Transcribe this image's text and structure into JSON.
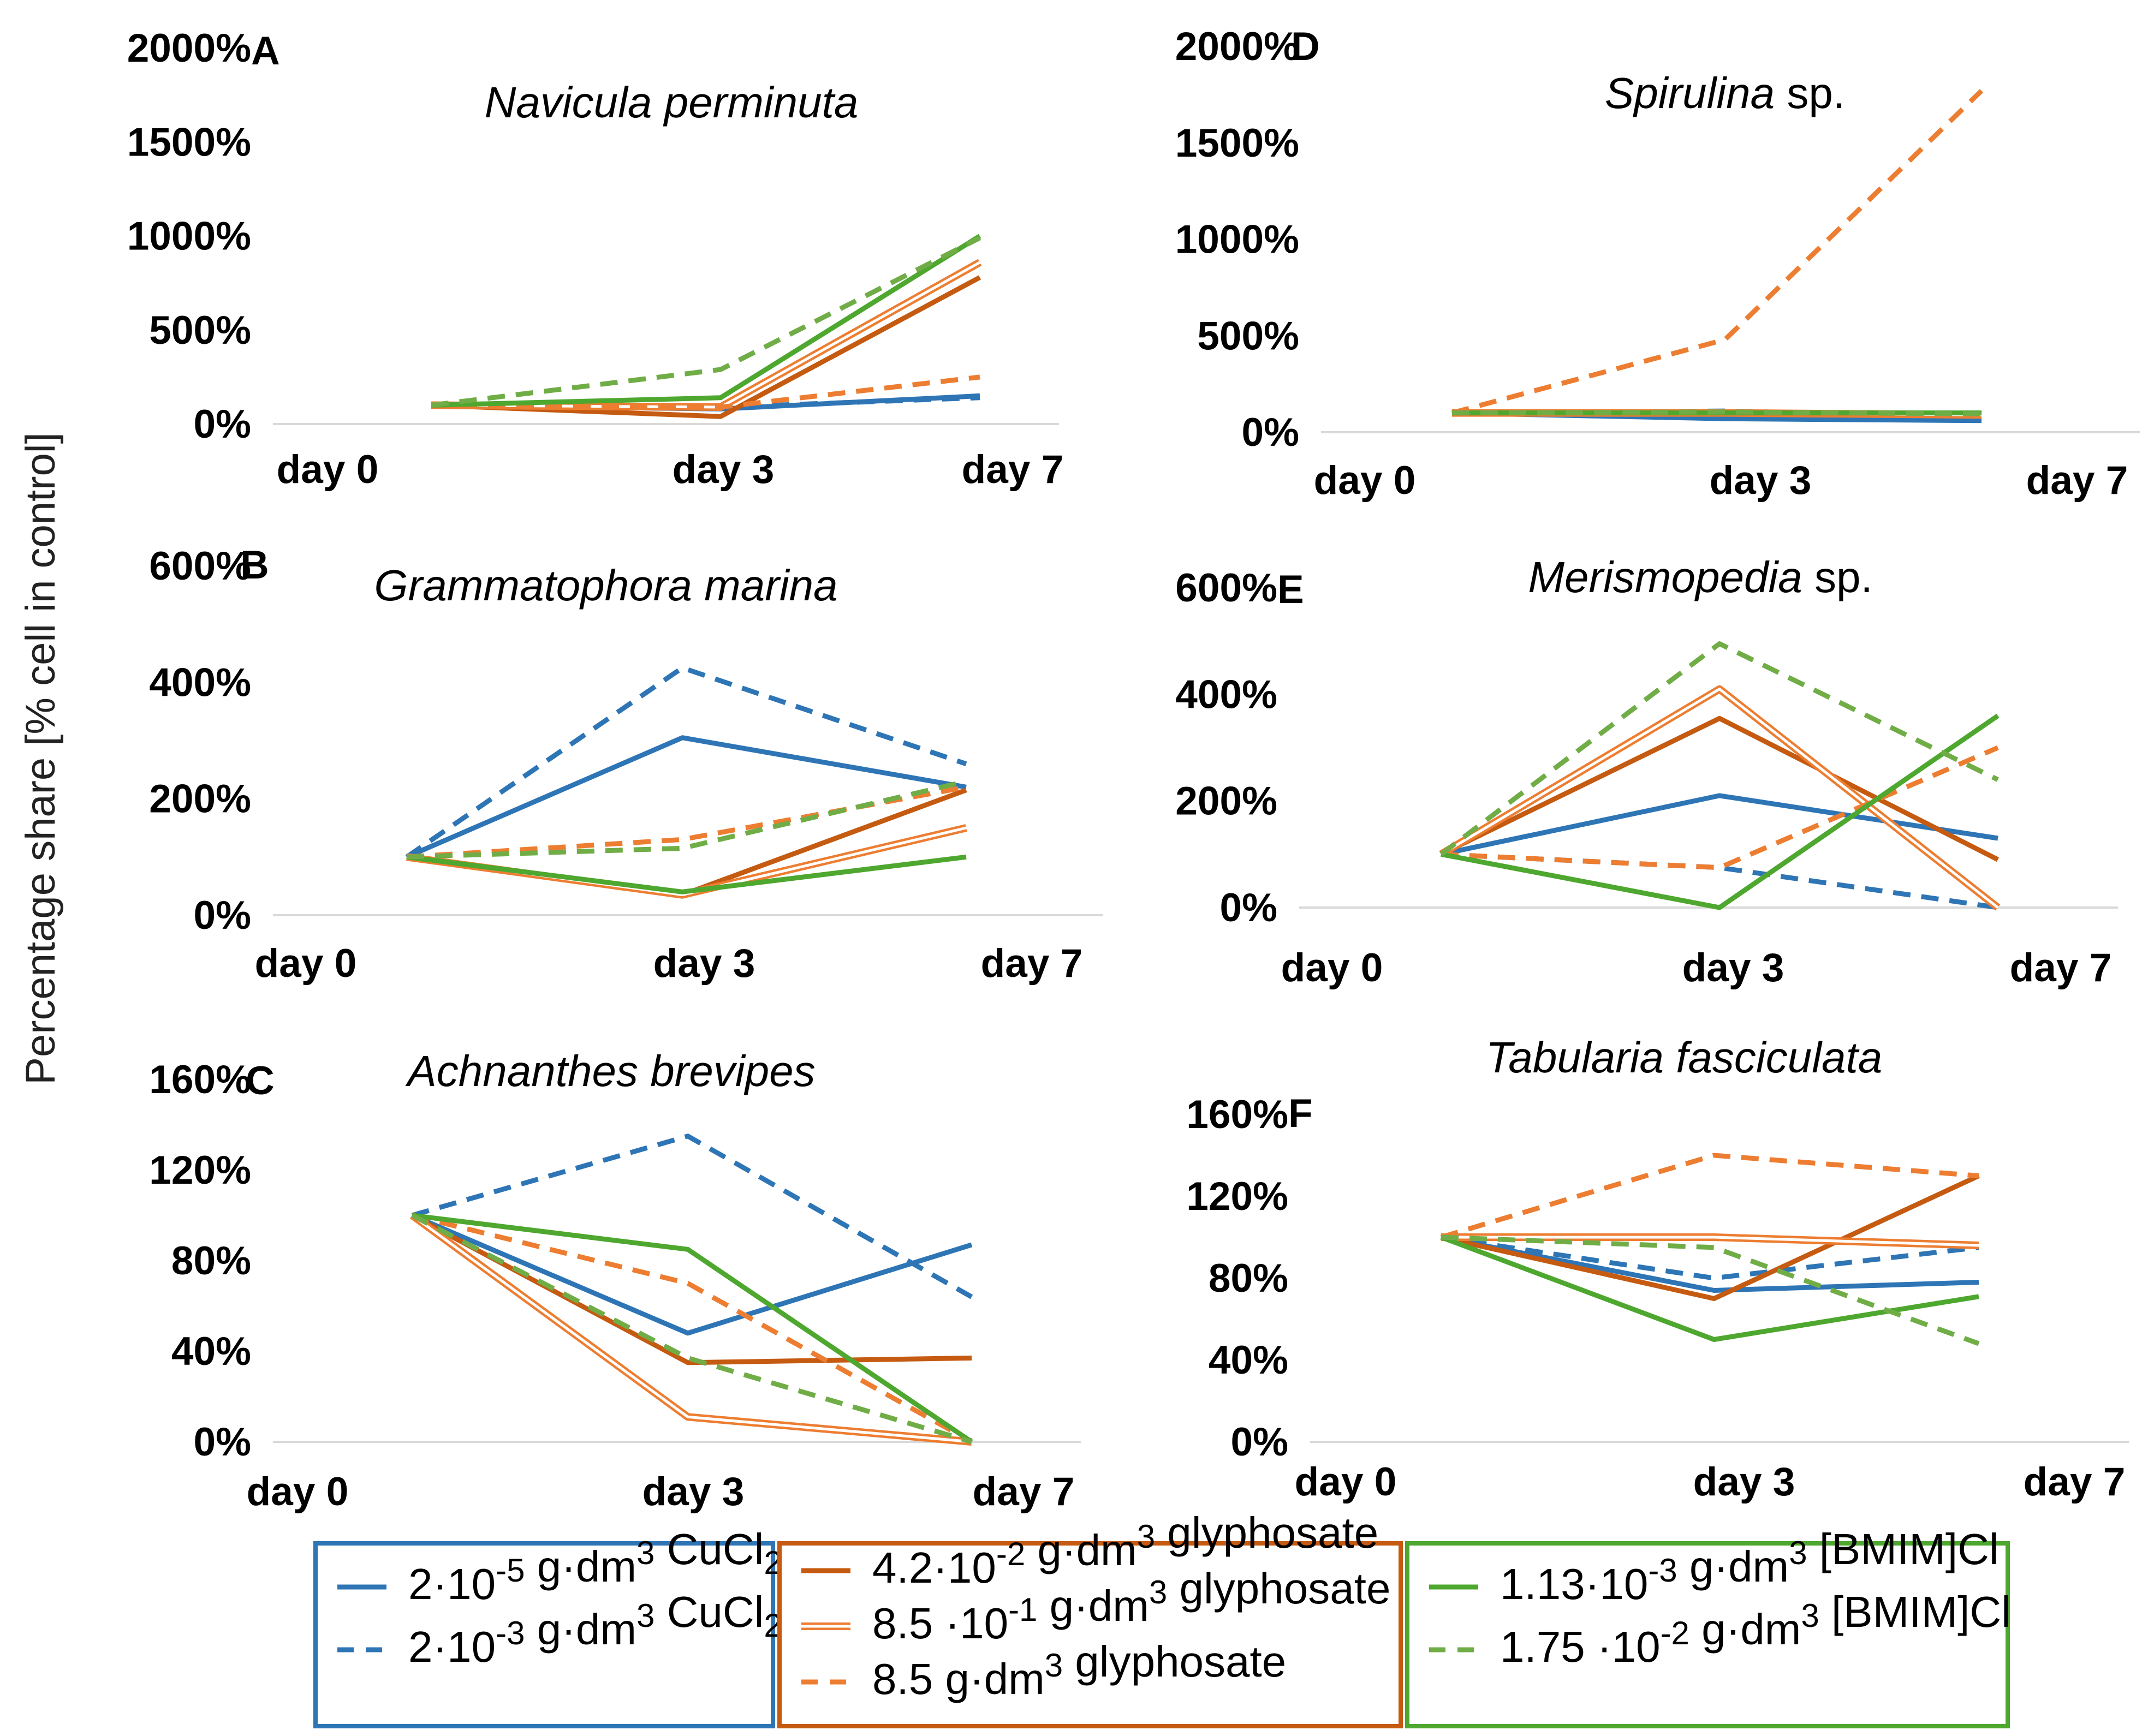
{
  "figure": {
    "y_axis_label": "Percentage share [% cell in control]",
    "x_categories": [
      "day 0",
      "day 3",
      "day 7"
    ]
  },
  "chart_data": [
    {
      "id": "A",
      "panel_label": "A",
      "type": "line",
      "title": "Navicula perminuta",
      "title_italic": "Navicula perminuta",
      "title_suffix": "",
      "x": [
        "day 0",
        "day 3",
        "day 7"
      ],
      "yticks": [
        "0%",
        "500%",
        "1000%",
        "1500%",
        "2000%"
      ],
      "ylim": [
        0,
        2000
      ],
      "series": [
        {
          "key": "cu_low",
          "values": [
            100,
            80,
            150
          ]
        },
        {
          "key": "cu_high",
          "values": [
            100,
            90,
            140
          ]
        },
        {
          "key": "gly_low",
          "values": [
            100,
            40,
            780
          ]
        },
        {
          "key": "gly_mid",
          "values": [
            100,
            90,
            860
          ]
        },
        {
          "key": "gly_high",
          "values": [
            100,
            90,
            250
          ]
        },
        {
          "key": "il_low",
          "values": [
            100,
            140,
            1000
          ]
        },
        {
          "key": "il_high",
          "values": [
            100,
            290,
            990
          ]
        }
      ]
    },
    {
      "id": "B",
      "panel_label": "B",
      "type": "line",
      "title": "Grammatophora marina",
      "title_italic": "Grammatophora marina",
      "title_suffix": "",
      "x": [
        "day 0",
        "day 3",
        "day 7"
      ],
      "yticks": [
        "0%",
        "200%",
        "400%",
        "600%"
      ],
      "ylim": [
        0,
        600
      ],
      "series": [
        {
          "key": "cu_low",
          "values": [
            100,
            305,
            220
          ]
        },
        {
          "key": "cu_high",
          "values": [
            100,
            425,
            260
          ]
        },
        {
          "key": "gly_low",
          "values": [
            100,
            35,
            215
          ]
        },
        {
          "key": "gly_mid",
          "values": [
            100,
            35,
            150
          ]
        },
        {
          "key": "gly_high",
          "values": [
            100,
            130,
            220
          ]
        },
        {
          "key": "il_low",
          "values": [
            100,
            40,
            100
          ]
        },
        {
          "key": "il_high",
          "values": [
            100,
            115,
            230
          ]
        }
      ]
    },
    {
      "id": "C",
      "panel_label": "C",
      "type": "line",
      "title": "Achnanthes brevipes",
      "title_italic": "Achnanthes brevipes",
      "title_suffix": "",
      "x": [
        "day 0",
        "day 3",
        "day 7"
      ],
      "yticks": [
        "0%",
        "40%",
        "80%",
        "120%",
        "160%"
      ],
      "ylim": [
        0,
        160
      ],
      "series": [
        {
          "key": "cu_low",
          "values": [
            100,
            48,
            87
          ]
        },
        {
          "key": "cu_high",
          "values": [
            100,
            135,
            64
          ]
        },
        {
          "key": "gly_low",
          "values": [
            100,
            35,
            37
          ]
        },
        {
          "key": "gly_mid",
          "values": [
            100,
            11,
            0
          ]
        },
        {
          "key": "gly_high",
          "values": [
            100,
            70,
            0
          ]
        },
        {
          "key": "il_low",
          "values": [
            100,
            85,
            0
          ]
        },
        {
          "key": "il_high",
          "values": [
            100,
            37,
            0
          ]
        }
      ]
    },
    {
      "id": "D",
      "panel_label": "D",
      "type": "line",
      "title": "Spirulina sp.",
      "title_italic": "Spirulina",
      "title_suffix": " sp.",
      "x": [
        "day 0",
        "day 3",
        "day 7"
      ],
      "yticks": [
        "0%",
        "500%",
        "1000%",
        "1500%",
        "2000%"
      ],
      "ylim": [
        0,
        2000
      ],
      "series": [
        {
          "key": "cu_low",
          "values": [
            100,
            70,
            60
          ]
        },
        {
          "key": "cu_high",
          "values": [
            100,
            110,
            80
          ]
        },
        {
          "key": "gly_low",
          "values": [
            100,
            100,
            90
          ]
        },
        {
          "key": "gly_mid",
          "values": [
            100,
            100,
            90
          ]
        },
        {
          "key": "gly_high",
          "values": [
            100,
            480,
            1770
          ]
        },
        {
          "key": "il_low",
          "values": [
            100,
            100,
            100
          ]
        },
        {
          "key": "il_high",
          "values": [
            100,
            105,
            95
          ]
        }
      ]
    },
    {
      "id": "E",
      "panel_label": "E",
      "type": "line",
      "title": "Merismopedia sp.",
      "title_italic": "Merismopedia",
      "title_suffix": " sp.",
      "x": [
        "day 0",
        "day 3",
        "day 7"
      ],
      "yticks": [
        "0%",
        "200%",
        "400%",
        "600%"
      ],
      "ylim": [
        0,
        600
      ],
      "series": [
        {
          "key": "cu_low",
          "values": [
            100,
            210,
            130
          ]
        },
        {
          "key": "cu_high",
          "values": [
            100,
            75,
            0
          ]
        },
        {
          "key": "gly_low",
          "values": [
            100,
            355,
            90
          ]
        },
        {
          "key": "gly_mid",
          "values": [
            100,
            410,
            0
          ]
        },
        {
          "key": "gly_high",
          "values": [
            100,
            75,
            300
          ]
        },
        {
          "key": "il_low",
          "values": [
            100,
            0,
            360
          ]
        },
        {
          "key": "il_high",
          "values": [
            100,
            495,
            240
          ]
        }
      ]
    },
    {
      "id": "F",
      "panel_label": "F",
      "type": "line",
      "title": "Tabularia fasciculata",
      "title_italic": "Tabularia fasciculata",
      "title_suffix": "",
      "x": [
        "day 0",
        "day 3",
        "day 7"
      ],
      "yticks": [
        "0%",
        "40%",
        "80%",
        "120%",
        "160%"
      ],
      "ylim": [
        0,
        160
      ],
      "series": [
        {
          "key": "cu_low",
          "values": [
            100,
            74,
            78
          ]
        },
        {
          "key": "cu_high",
          "values": [
            100,
            80,
            95
          ]
        },
        {
          "key": "gly_low",
          "values": [
            100,
            70,
            130
          ]
        },
        {
          "key": "gly_mid",
          "values": [
            100,
            100,
            96
          ]
        },
        {
          "key": "gly_high",
          "values": [
            100,
            140,
            130
          ]
        },
        {
          "key": "il_low",
          "values": [
            100,
            50,
            71
          ]
        },
        {
          "key": "il_high",
          "values": [
            100,
            95,
            48
          ]
        }
      ]
    }
  ],
  "series_styles": {
    "cu_low": {
      "color": "#2E75B6",
      "dash": "solid"
    },
    "cu_high": {
      "color": "#2E75B6",
      "dash": "dashed"
    },
    "gly_low": {
      "color": "#C55A11",
      "dash": "solid"
    },
    "gly_mid": {
      "color": "#ED7D31",
      "dash": "double"
    },
    "gly_high": {
      "color": "#ED7D31",
      "dash": "dashed"
    },
    "il_low": {
      "color": "#4EA72E",
      "dash": "solid"
    },
    "il_high": {
      "color": "#70AD47",
      "dash": "dashed"
    }
  },
  "legend": {
    "groups": [
      {
        "border_color": "#2E75B6",
        "items": [
          {
            "key": "cu_low",
            "mantissa": "2·10",
            "exponent": "-5",
            "unit": " g·dm",
            "unit_exp": "3",
            "compound": " CuCl",
            "compound_sub": "2"
          },
          {
            "key": "cu_high",
            "mantissa": "2·10",
            "exponent": "-3",
            "unit": " g·dm",
            "unit_exp": "3",
            "compound": " CuCl",
            "compound_sub": "2"
          }
        ]
      },
      {
        "border_color": "#C55A11",
        "items": [
          {
            "key": "gly_low",
            "mantissa": "4.2·10",
            "exponent": "-2",
            "unit": " g·dm",
            "unit_exp": "3",
            "compound": " glyphosate",
            "compound_sub": ""
          },
          {
            "key": "gly_mid",
            "mantissa": "8.5 ·10",
            "exponent": "-1",
            "unit": " g·dm",
            "unit_exp": "3",
            "compound": " glyphosate",
            "compound_sub": ""
          },
          {
            "key": "gly_high",
            "mantissa": "8.5 g·dm",
            "exponent": "3",
            "unit": "",
            "unit_exp": "",
            "compound": " glyphosate",
            "compound_sub": ""
          }
        ]
      },
      {
        "border_color": "#4EA72E",
        "items": [
          {
            "key": "il_low",
            "mantissa": "1.13·10",
            "exponent": "-3",
            "unit": " g·dm",
            "unit_exp": "3",
            "compound": " [BMIM]Cl",
            "compound_sub": ""
          },
          {
            "key": "il_high",
            "mantissa": "1.75 ·10",
            "exponent": "-2",
            "unit": " g·dm",
            "unit_exp": "3",
            "compound": " [BMIM]Cl",
            "compound_sub": ""
          }
        ]
      }
    ]
  }
}
